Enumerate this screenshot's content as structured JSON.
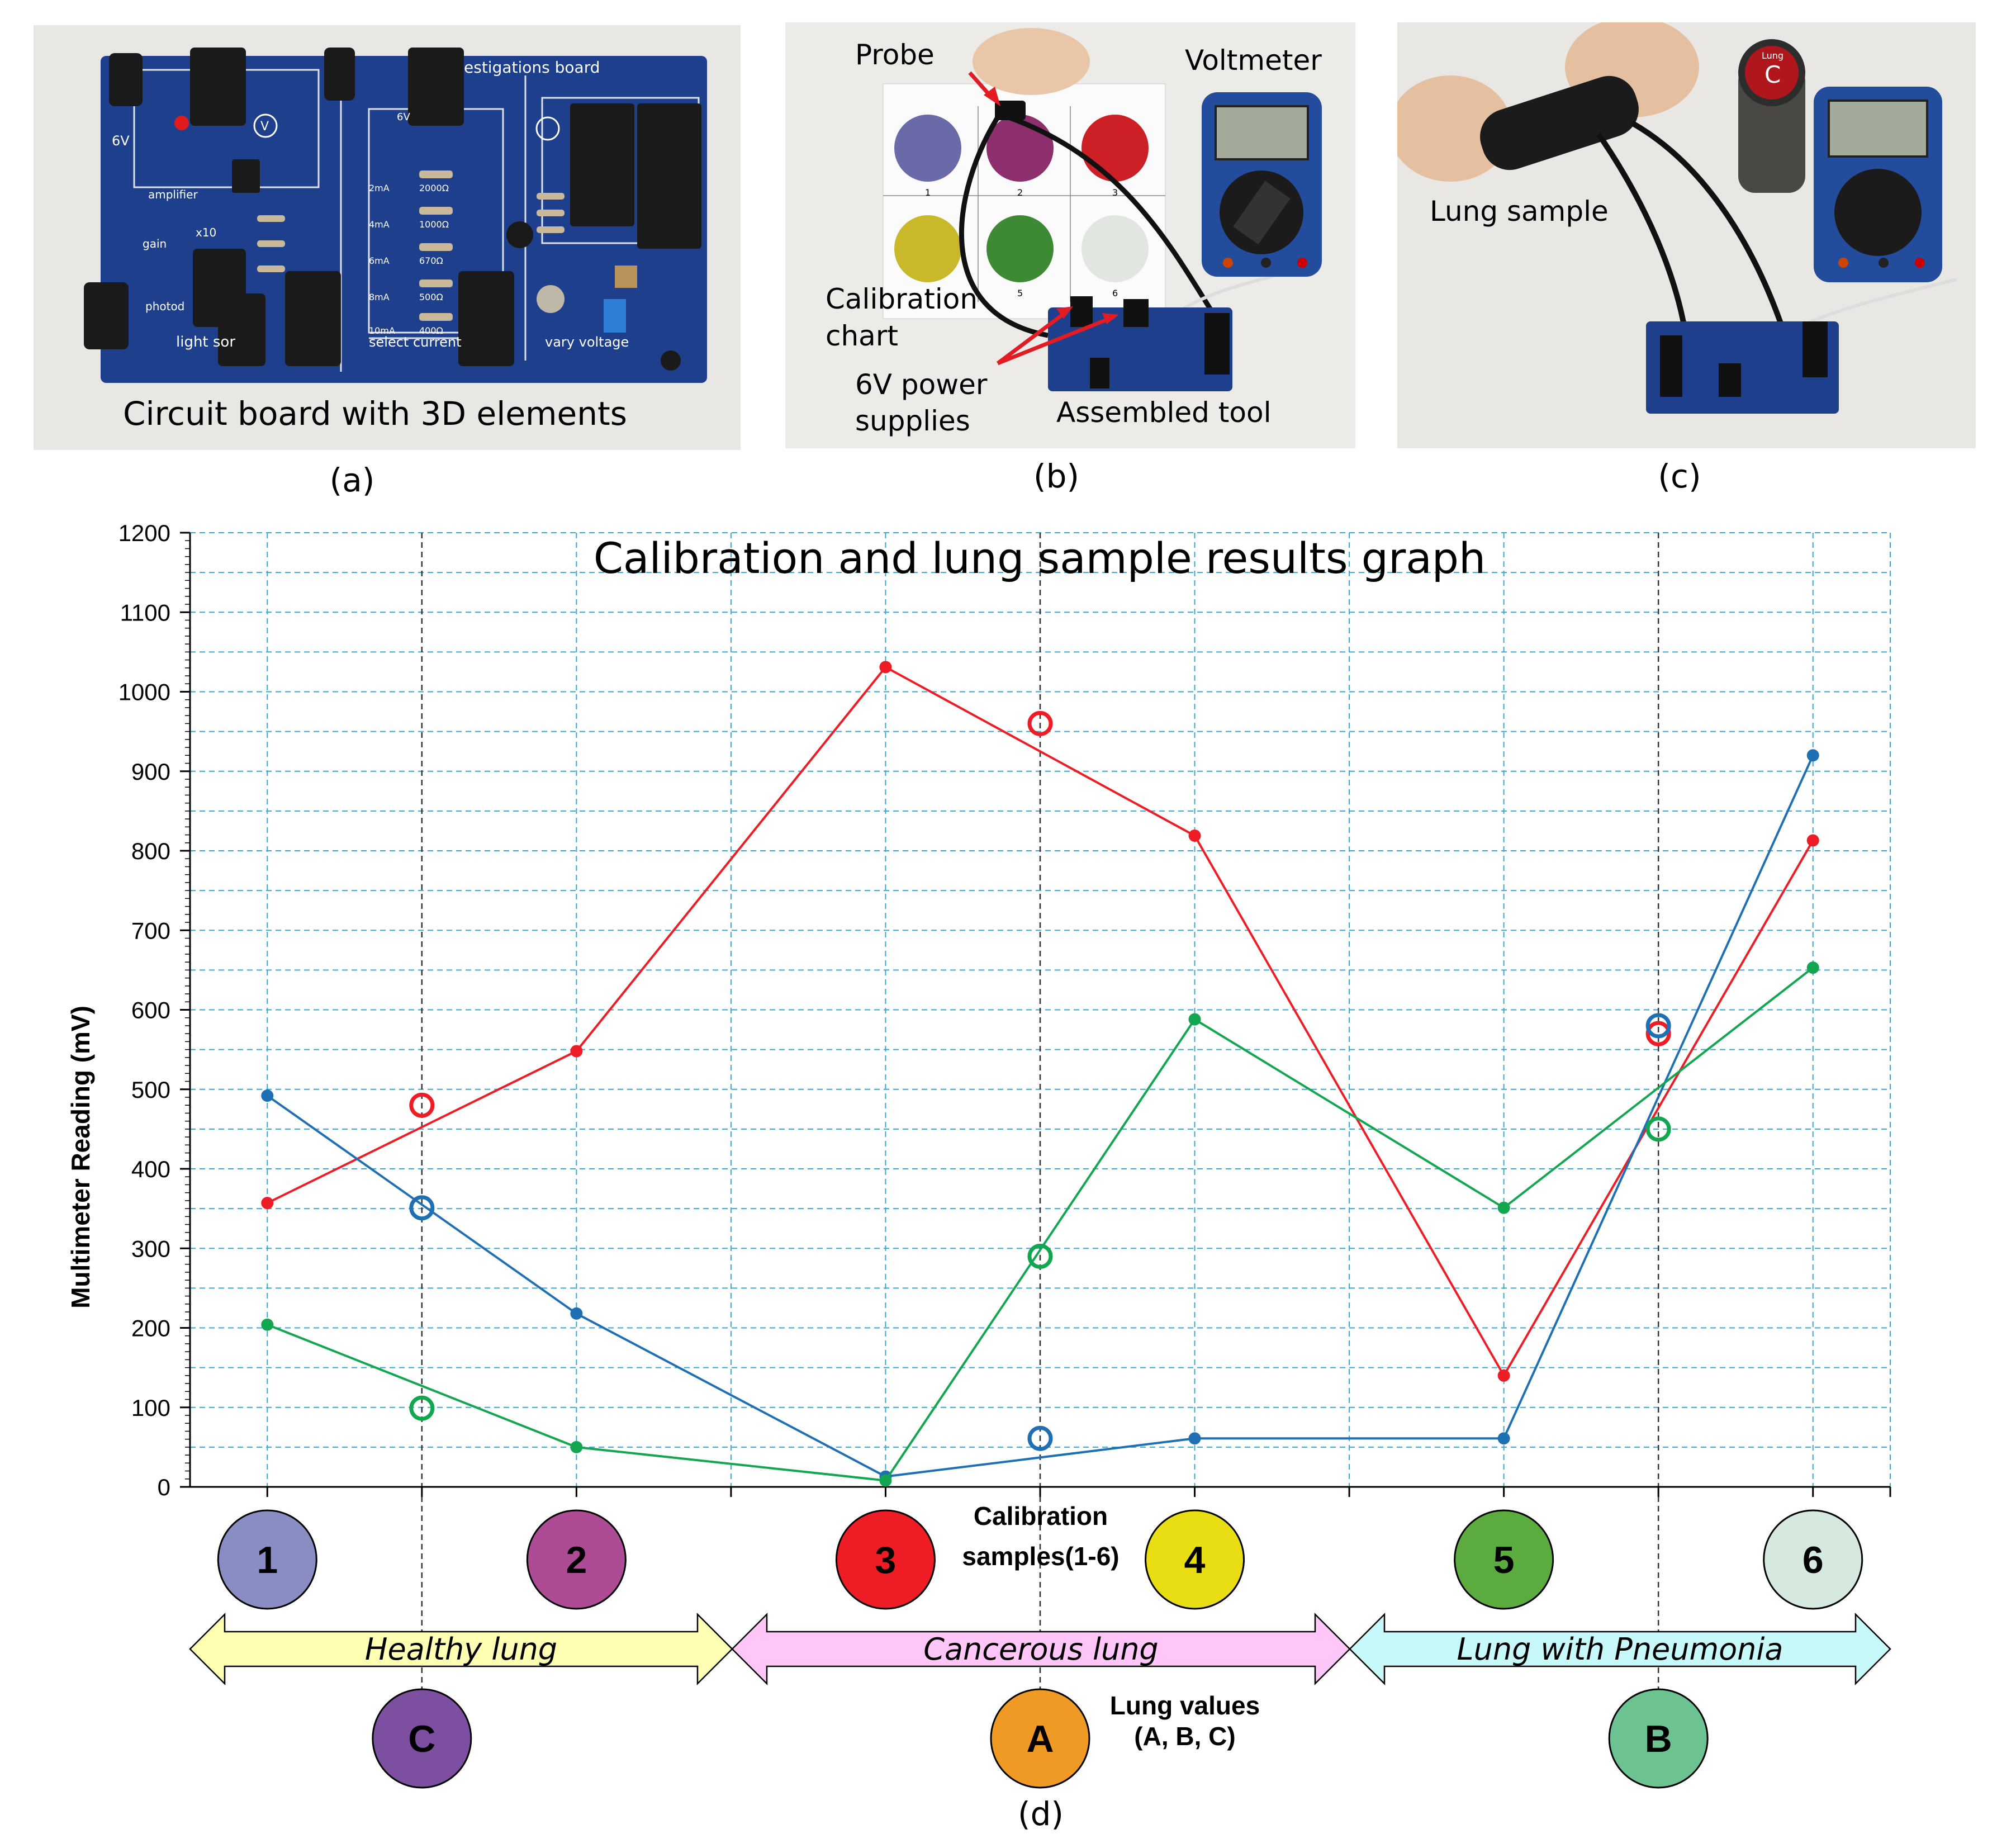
{
  "photos": {
    "a": {
      "label": "(a)",
      "caption": "Circuit board with 3D elements",
      "board_text": {
        "title": "estigations board",
        "v6": "6V",
        "v6b": "6V",
        "amplifier": "amplifier",
        "gain": "gain",
        "x10": "x10",
        "photod": "photod",
        "light_sensor": "light   sor",
        "select_current": "select current",
        "vary_voltage": "vary voltage",
        "currents": [
          "2mA",
          "4mA",
          "6mA",
          "8mA",
          "10mA"
        ],
        "resistors": [
          "2000Ω",
          "1000Ω",
          "670Ω",
          "500Ω",
          "400Ω"
        ],
        "v_symbol": "V"
      }
    },
    "b": {
      "label": "(b)",
      "probe": "Probe",
      "voltmeter": "Voltmeter",
      "calibration_chart": [
        "Calibration",
        "chart"
      ],
      "power_supplies": [
        "6V power",
        "supplies"
      ],
      "assembled_tool": "Assembled tool",
      "chart_sample_numbers": [
        "1",
        "2",
        "3",
        "4",
        "5",
        "6"
      ]
    },
    "c": {
      "label": "(c)",
      "lung_sample": "Lung sample",
      "cap_letter": "C",
      "cap_word": "Lung"
    }
  },
  "colors": {
    "red": "#ee1c25",
    "blue": "#1f6fb5",
    "green": "#13a651",
    "grid": "#3aa7d2",
    "board": "#1d3f8c"
  },
  "chart_data": {
    "type": "line",
    "title": "Calibration and lung sample results graph",
    "ylabel": "Multimeter Reading (mV)",
    "xlabel": "",
    "ylim": [
      0,
      1200
    ],
    "yticks": [
      0,
      100,
      200,
      300,
      400,
      500,
      600,
      700,
      800,
      900,
      1000,
      1100,
      1200
    ],
    "grid": true,
    "x_positions": [
      1,
      2,
      3,
      4,
      5,
      6,
      7,
      8,
      9,
      10,
      11
    ],
    "calibration_samples": [
      {
        "label": "1",
        "x": 1,
        "color": "#8a8cc4"
      },
      {
        "label": "2",
        "x": 3,
        "color": "#ad4b95"
      },
      {
        "label": "3",
        "x": 5,
        "color": "#ee1c25"
      },
      {
        "label": "4",
        "x": 7,
        "color": "#e9dd14"
      },
      {
        "label": "5",
        "x": 9,
        "color": "#5bab3e"
      },
      {
        "label": "6",
        "x": 11,
        "color": "#d5e9de"
      }
    ],
    "lung_samples": [
      {
        "label": "C",
        "x": 2,
        "color": "#7c4fa1"
      },
      {
        "label": "A",
        "x": 6,
        "color": "#f09a26"
      },
      {
        "label": "B",
        "x": 10,
        "color": "#6cc391"
      }
    ],
    "calibration_caption": [
      "Calibration",
      "samples(1-6)"
    ],
    "lung_caption": [
      "Lung values",
      "(A, B, C)"
    ],
    "regions": [
      {
        "label": "Healthy lung",
        "color": "#ffffb3"
      },
      {
        "label": "Cancerous lung",
        "color": "#ffc6f7"
      },
      {
        "label": "Lung with Pneumonia",
        "color": "#c7f8fa"
      }
    ],
    "series": [
      {
        "color": "#ee1c25",
        "points": [
          [
            1,
            357
          ],
          [
            3,
            548
          ],
          [
            5,
            1031
          ],
          [
            7,
            819
          ],
          [
            9,
            140
          ],
          [
            11,
            813
          ]
        ],
        "lung_points": [
          [
            2,
            480
          ],
          [
            6,
            960
          ],
          [
            10,
            570
          ]
        ]
      },
      {
        "color": "#1f6fb5",
        "points": [
          [
            1,
            492
          ],
          [
            3,
            218
          ],
          [
            5,
            13
          ],
          [
            7,
            61
          ],
          [
            9,
            61
          ],
          [
            11,
            920
          ]
        ],
        "lung_points": [
          [
            2,
            351
          ],
          [
            6,
            61
          ],
          [
            10,
            580
          ]
        ]
      },
      {
        "color": "#13a651",
        "points": [
          [
            1,
            204
          ],
          [
            3,
            50
          ],
          [
            5,
            8
          ],
          [
            7,
            588
          ],
          [
            9,
            351
          ],
          [
            11,
            653
          ]
        ],
        "lung_points": [
          [
            2,
            99
          ],
          [
            6,
            290
          ],
          [
            10,
            450
          ]
        ]
      }
    ],
    "panel_label": "(d)"
  }
}
